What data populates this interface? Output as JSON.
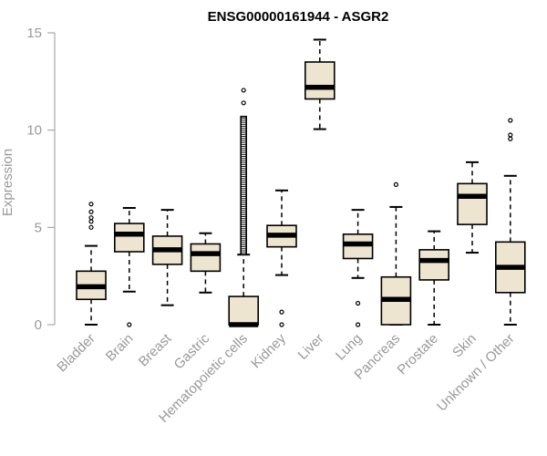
{
  "chart_data": {
    "type": "boxplot",
    "title": "ENSG00000161944 - ASGR2",
    "xlabel": "",
    "ylabel": "Expression",
    "ylim": [
      0,
      15
    ],
    "yticks": [
      0,
      5,
      10,
      15
    ],
    "box_fill": "#ede5cf",
    "categories": [
      "Bladder",
      "Brain",
      "Breast",
      "Gastric",
      "Hematopoietic cells",
      "Kidney",
      "Liver",
      "Lung",
      "Pancreas",
      "Prostate",
      "Skin",
      "Unknown / Other"
    ],
    "boxes": [
      {
        "category": "Bladder",
        "whisker_low": 0.0,
        "q1": 1.3,
        "median": 1.95,
        "q3": 2.75,
        "whisker_high": 4.05,
        "outliers": [
          5.0,
          5.3,
          5.5,
          5.8,
          6.2
        ]
      },
      {
        "category": "Brain",
        "whisker_low": 1.7,
        "q1": 3.75,
        "median": 4.65,
        "q3": 5.2,
        "whisker_high": 6.0,
        "outliers": [
          0.0
        ]
      },
      {
        "category": "Breast",
        "whisker_low": 1.0,
        "q1": 3.1,
        "median": 3.85,
        "q3": 4.55,
        "whisker_high": 5.9,
        "outliers": []
      },
      {
        "category": "Gastric",
        "whisker_low": 1.65,
        "q1": 2.75,
        "median": 3.65,
        "q3": 4.15,
        "whisker_high": 4.7,
        "outliers": []
      },
      {
        "category": "Hematopoietic cells",
        "whisker_low": 0.0,
        "q1": 0.0,
        "median": 0.0,
        "q3": 1.45,
        "whisker_high": 3.6,
        "outliers": [
          11.4,
          12.05
        ],
        "outlier_band": [
          3.6,
          10.7
        ]
      },
      {
        "category": "Kidney",
        "whisker_low": 2.55,
        "q1": 4.0,
        "median": 4.6,
        "q3": 5.1,
        "whisker_high": 6.9,
        "outliers": [
          0.0,
          0.65
        ]
      },
      {
        "category": "Liver",
        "whisker_low": 10.05,
        "q1": 11.6,
        "median": 12.2,
        "q3": 13.5,
        "whisker_high": 14.65,
        "outliers": []
      },
      {
        "category": "Lung",
        "whisker_low": 2.4,
        "q1": 3.4,
        "median": 4.15,
        "q3": 4.65,
        "whisker_high": 5.9,
        "outliers": [
          0.0,
          1.1
        ]
      },
      {
        "category": "Pancreas",
        "whisker_low": 0.0,
        "q1": 0.0,
        "median": 1.3,
        "q3": 2.45,
        "whisker_high": 6.05,
        "outliers": [
          7.2
        ]
      },
      {
        "category": "Prostate",
        "whisker_low": 0.0,
        "q1": 2.3,
        "median": 3.3,
        "q3": 3.85,
        "whisker_high": 4.8,
        "outliers": []
      },
      {
        "category": "Skin",
        "whisker_low": 3.7,
        "q1": 5.15,
        "median": 6.6,
        "q3": 7.25,
        "whisker_high": 8.35,
        "outliers": []
      },
      {
        "category": "Unknown / Other",
        "whisker_low": 0.0,
        "q1": 1.65,
        "median": 2.95,
        "q3": 4.25,
        "whisker_high": 7.65,
        "outliers": [
          9.55,
          9.75,
          10.5
        ]
      }
    ]
  }
}
